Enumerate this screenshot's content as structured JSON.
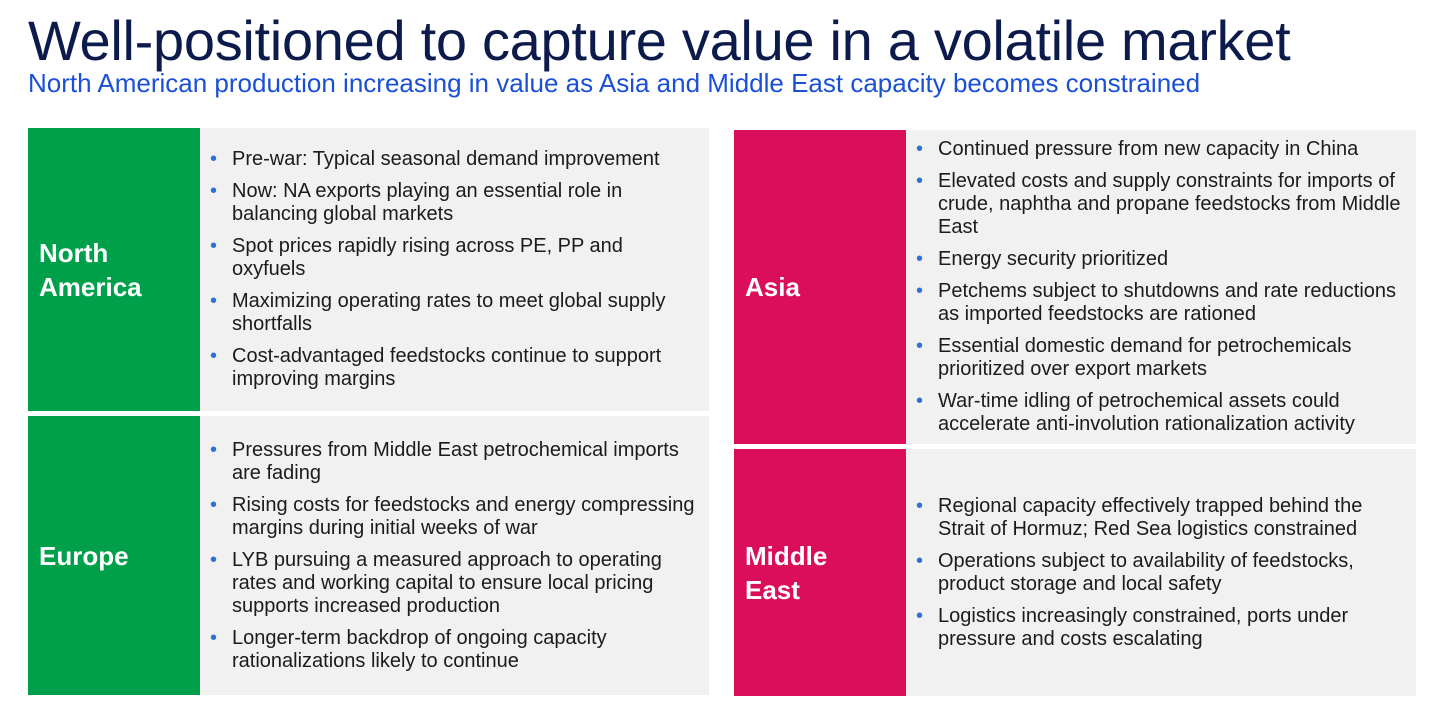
{
  "header": {
    "title": "Well-positioned to capture value in a volatile market",
    "subtitle": "North American production increasing in value as Asia and Middle East capacity becomes constrained"
  },
  "colors": {
    "green": "#00a04a",
    "magenta": "#da0e5a",
    "title": "#0d1b4c",
    "subtitle": "#1a4fd6",
    "panel_bg": "#f1f1f1"
  },
  "panels": {
    "north_america": {
      "label": "North America",
      "bullets": [
        "Pre-war: Typical seasonal demand improvement",
        "Now: NA exports playing an essential role in balancing global markets",
        "Spot prices rapidly rising across PE, PP and oxyfuels",
        "Maximizing operating rates to meet global supply shortfalls",
        "Cost-advantaged feedstocks continue to support improving margins"
      ]
    },
    "europe": {
      "label": "Europe",
      "bullets": [
        "Pressures from Middle East petrochemical imports are fading",
        "Rising costs for feedstocks and energy compressing margins during initial weeks of war",
        "LYB pursuing a measured approach to operating rates and working capital to ensure local pricing supports increased production",
        "Longer-term backdrop of ongoing capacity rationalizations likely to continue"
      ]
    },
    "asia": {
      "label": "Asia",
      "bullets": [
        "Continued pressure from new capacity in China",
        "Elevated costs and supply constraints for imports of crude, naphtha and propane feedstocks from Middle East",
        "Energy security prioritized",
        "Petchems subject to shutdowns and rate reductions as imported feedstocks are rationed",
        "Essential domestic demand for petrochemicals prioritized over export markets",
        "War-time idling of petrochemical assets could accelerate anti-involution rationalization activity"
      ]
    },
    "middle_east": {
      "label": "Middle East",
      "bullets": [
        "Regional capacity effectively trapped behind the Strait of Hormuz; Red Sea logistics constrained",
        "Operations subject to availability of feedstocks, product storage and local safety",
        "Logistics increasingly constrained, ports under pressure and costs escalating"
      ]
    }
  }
}
